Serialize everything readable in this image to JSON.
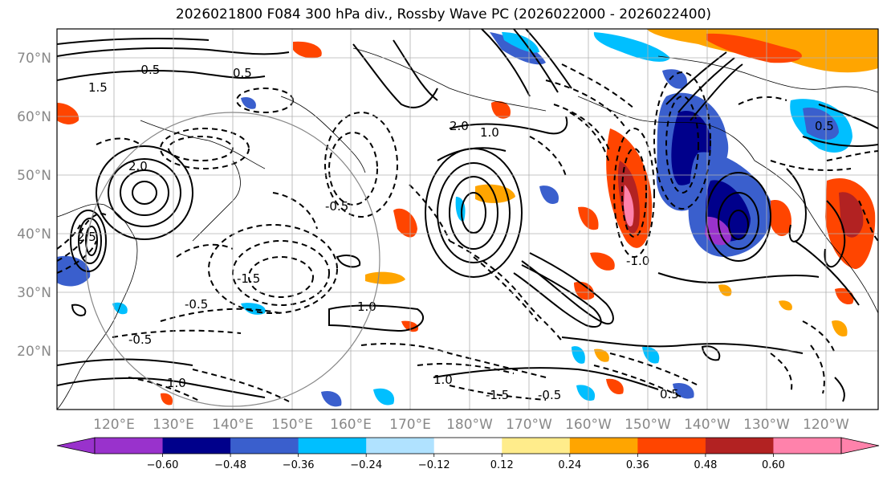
{
  "title": "2026021800 F084 300 hPa div., Rossby Wave PC (2026022000 - 2026022400)",
  "map": {
    "lat_labels": [
      "70°N",
      "60°N",
      "50°N",
      "40°N",
      "30°N",
      "20°N"
    ],
    "lon_labels": [
      "120°E",
      "130°E",
      "140°E",
      "150°E",
      "160°E",
      "170°E",
      "180°W",
      "170°W",
      "160°W",
      "150°W",
      "140°W",
      "130°W",
      "120°W"
    ],
    "contour_labels": [
      "1.0",
      "1.5",
      "-0.5",
      "0.5",
      "2.0",
      "2.5",
      "-1.5",
      "1.0",
      "-0.5",
      "-0.5",
      "-0.5",
      "1.0",
      "-1.0",
      "-1.5",
      "-0.5",
      "0.5",
      "1.0",
      "2.0",
      "0.5"
    ]
  },
  "colorbar": {
    "ticks": [
      "−0.60",
      "−0.48",
      "−0.36",
      "−0.24",
      "−0.12",
      "0.12",
      "0.24",
      "0.36",
      "0.48",
      "0.60"
    ],
    "colors": [
      "#9932cc",
      "#00008b",
      "#3a5fcd",
      "#00bfff",
      "#b0e2ff",
      "#ffffff",
      "#ffec8b",
      "#ffa500",
      "#ff4500",
      "#b22222",
      "#ff82ab"
    ]
  }
}
